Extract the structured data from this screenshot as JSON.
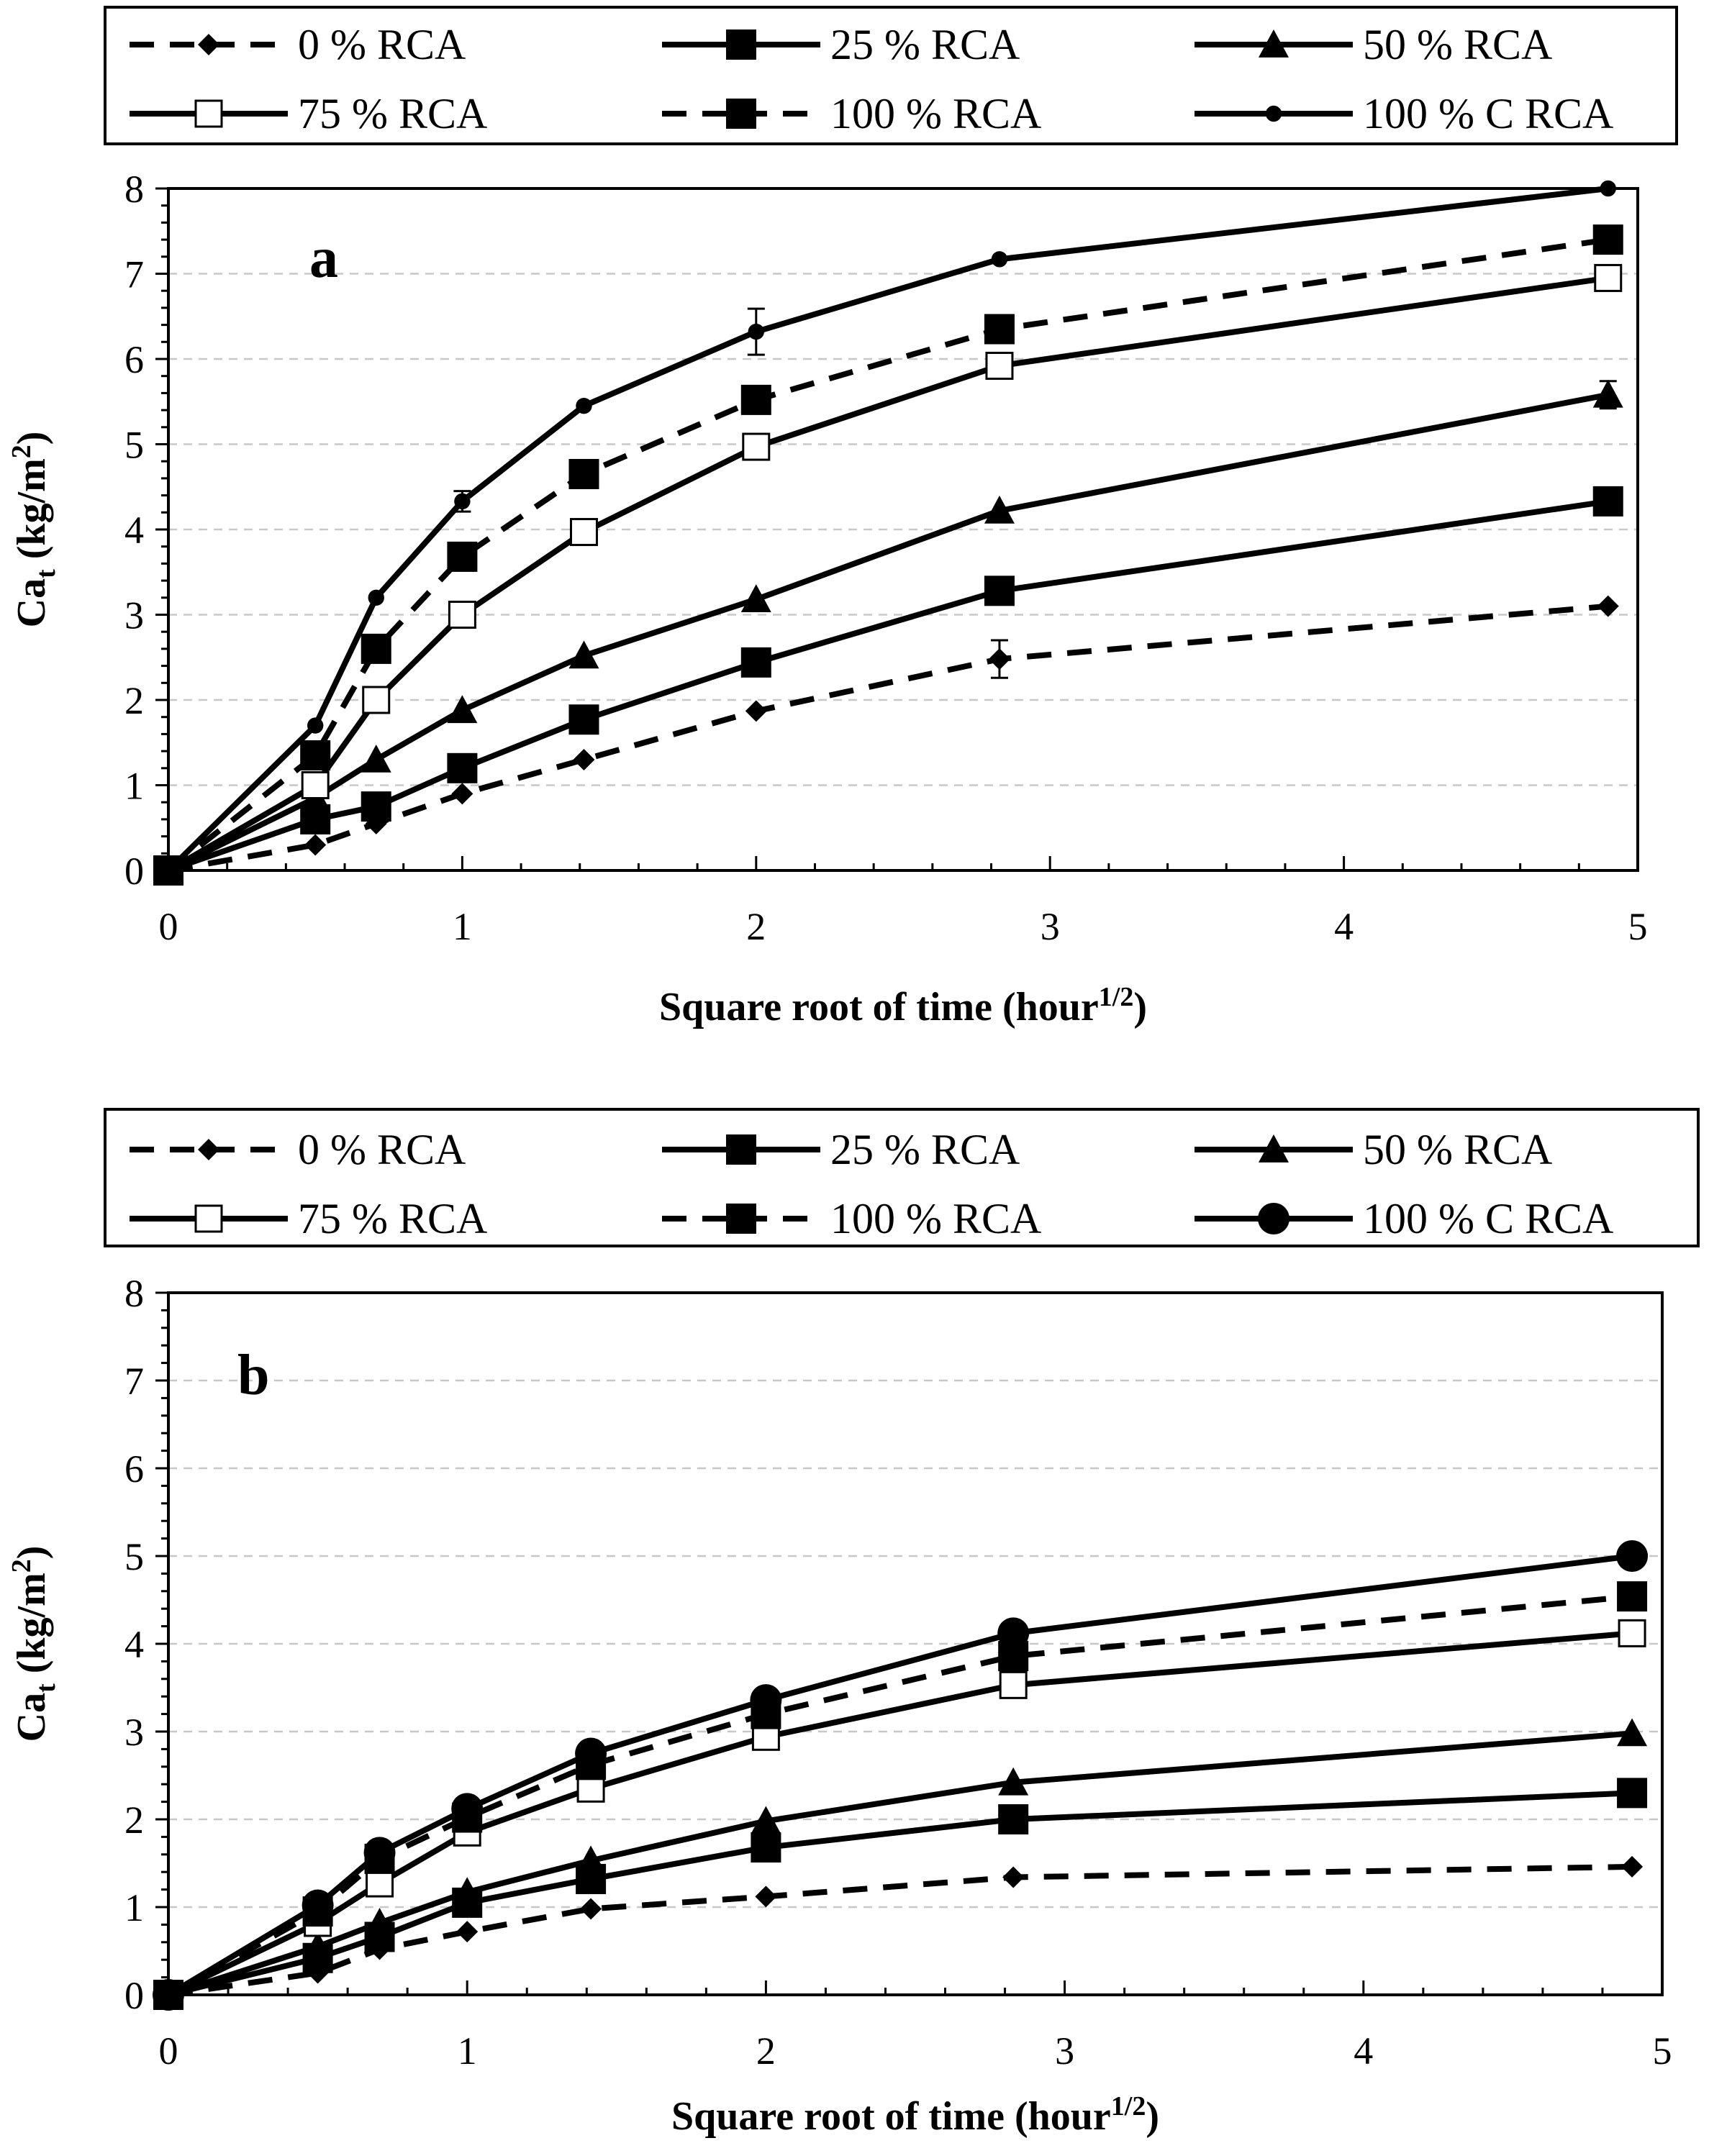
{
  "chart_data": [
    {
      "type": "line",
      "panel_label": "a",
      "xlabel": "Square root of time (hour",
      "xlabel_sup": "1/2",
      "xlabel_close": ")",
      "ylabel": "Ca",
      "ylabel_sub": "t",
      "ylabel_unit_open": " (kg/m",
      "ylabel_unit_sup": "2",
      "ylabel_unit_close": ")",
      "xlim": [
        0,
        5
      ],
      "ylim": [
        0,
        8
      ],
      "xticks": [
        "0",
        "1",
        "2",
        "3",
        "4",
        "5"
      ],
      "yticks": [
        "0",
        "1",
        "2",
        "3",
        "4",
        "5",
        "6",
        "7",
        "8"
      ],
      "grid": true,
      "x": [
        0,
        0.5,
        0.707,
        1,
        1.414,
        2,
        2.828,
        4.899
      ],
      "series": [
        {
          "name": "0 % RCA",
          "marker": "diamond",
          "dash": true,
          "values": [
            0,
            0.3,
            0.55,
            0.9,
            1.3,
            1.87,
            2.48,
            3.1
          ]
        },
        {
          "name": "25 % RCA",
          "marker": "square",
          "dash": false,
          "values": [
            0,
            0.6,
            0.75,
            1.2,
            1.77,
            2.44,
            3.28,
            4.33
          ]
        },
        {
          "name": "50 % RCA",
          "marker": "triangle",
          "dash": false,
          "values": [
            0,
            0.85,
            1.3,
            1.88,
            2.52,
            3.18,
            4.22,
            5.58
          ]
        },
        {
          "name": "75 % RCA",
          "marker": "open-square",
          "dash": false,
          "values": [
            0,
            1.0,
            2.0,
            3.0,
            3.97,
            4.97,
            5.92,
            6.95
          ]
        },
        {
          "name": "100 % RCA",
          "marker": "square",
          "dash": true,
          "values": [
            0,
            1.35,
            2.6,
            3.68,
            4.65,
            5.52,
            6.35,
            7.4
          ]
        },
        {
          "name": "100 % C RCA",
          "marker": "small-circle",
          "dash": false,
          "values": [
            0,
            1.7,
            3.2,
            4.33,
            5.45,
            6.32,
            7.17,
            8.0
          ]
        }
      ]
    },
    {
      "type": "line",
      "panel_label": "b",
      "xlabel": "Square root of time (hour",
      "xlabel_sup": "1/2",
      "xlabel_close": ")",
      "ylabel": "Ca",
      "ylabel_sub": "t",
      "ylabel_unit_open": " (kg/m",
      "ylabel_unit_sup": "2",
      "ylabel_unit_close": ")",
      "xlim": [
        0,
        5
      ],
      "ylim": [
        0,
        8
      ],
      "xticks": [
        "0",
        "1",
        "2",
        "3",
        "4",
        "5"
      ],
      "yticks": [
        "0",
        "1",
        "2",
        "3",
        "4",
        "5",
        "6",
        "7",
        "8"
      ],
      "grid": true,
      "x": [
        0,
        0.5,
        0.707,
        1,
        1.414,
        2,
        2.828,
        4.899
      ],
      "series": [
        {
          "name": "0 % RCA",
          "marker": "diamond",
          "dash": true,
          "values": [
            0,
            0.25,
            0.52,
            0.72,
            0.98,
            1.12,
            1.34,
            1.46
          ]
        },
        {
          "name": "25 % RCA",
          "marker": "square",
          "dash": false,
          "values": [
            0,
            0.42,
            0.66,
            1.05,
            1.32,
            1.68,
            2.0,
            2.3
          ]
        },
        {
          "name": "50 % RCA",
          "marker": "triangle",
          "dash": false,
          "values": [
            0,
            0.55,
            0.82,
            1.17,
            1.53,
            1.98,
            2.42,
            2.98
          ]
        },
        {
          "name": "75 % RCA",
          "marker": "open-square",
          "dash": false,
          "values": [
            0,
            0.82,
            1.27,
            1.85,
            2.35,
            2.94,
            3.53,
            4.12
          ]
        },
        {
          "name": "100 % RCA",
          "marker": "square",
          "dash": true,
          "values": [
            0,
            0.95,
            1.55,
            2.02,
            2.62,
            3.2,
            3.86,
            4.54
          ]
        },
        {
          "name": "100 % C RCA",
          "marker": "circle",
          "dash": false,
          "values": [
            0,
            1.02,
            1.62,
            2.12,
            2.75,
            3.36,
            4.12,
            5.0
          ]
        }
      ]
    }
  ]
}
